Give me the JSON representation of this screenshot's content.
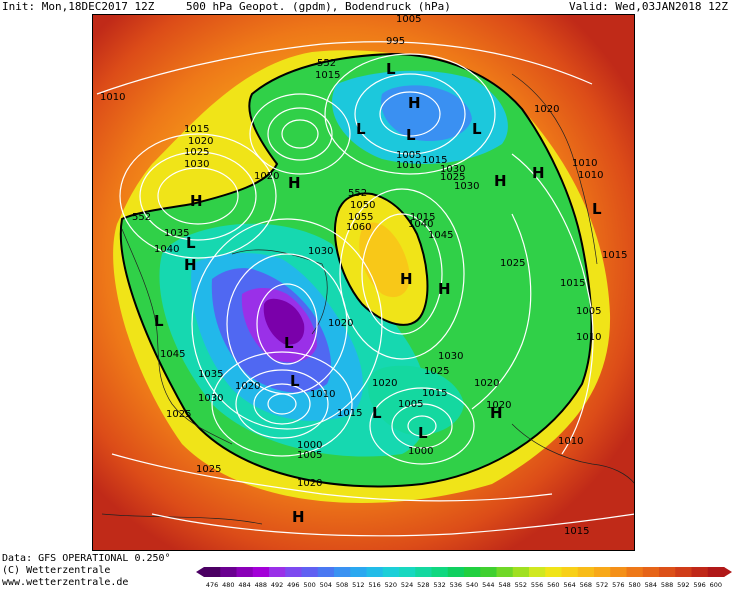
{
  "header": {
    "init": "Init: Mon,18DEC2017 12Z",
    "title": "500 hPa Geopot. (gpdm), Bodendruck (hPa)",
    "valid": "Valid: Wed,03JAN2018 12Z"
  },
  "footer": {
    "data": "Data: GFS OPERATIONAL 0.250°",
    "copyright": "(C) Wetterzentrale",
    "url": "www.wetterzentrale.de"
  },
  "colorscale": {
    "labels": [
      "476",
      "480",
      "484",
      "488",
      "492",
      "496",
      "500",
      "504",
      "508",
      "512",
      "516",
      "520",
      "524",
      "528",
      "532",
      "536",
      "540",
      "544",
      "548",
      "552",
      "556",
      "560",
      "564",
      "568",
      "572",
      "576",
      "580",
      "584",
      "588",
      "592",
      "596",
      "600"
    ],
    "colors": [
      "#4b0063",
      "#6a0090",
      "#8a00b8",
      "#a300d8",
      "#9a30e8",
      "#7d4af0",
      "#6060f2",
      "#4a78f2",
      "#3a92f2",
      "#2aa8f0",
      "#22bce8",
      "#1ccfd8",
      "#18d8c0",
      "#14d8a0",
      "#10d880",
      "#10d060",
      "#20d040",
      "#40d030",
      "#70d828",
      "#a0e020",
      "#d0e820",
      "#f0e418",
      "#f8d018",
      "#f8bc18",
      "#f8a818",
      "#f49018",
      "#ee7818",
      "#e66418",
      "#dc5018",
      "#d03c18",
      "#c02818",
      "#b01818"
    ]
  },
  "map": {
    "isobar_labels": [
      "1005",
      "995",
      "552",
      "1015",
      "1010",
      "1020",
      "1015",
      "1020",
      "1025",
      "1030",
      "1005",
      "1010",
      "1015",
      "1030",
      "1025",
      "1030",
      "1020",
      "1010",
      "552",
      "1050",
      "1035",
      "1015",
      "1040",
      "1060",
      "1055",
      "1045",
      "1040",
      "1030",
      "1025",
      "1020",
      "1015",
      "1045",
      "1035",
      "1030",
      "1020",
      "1025",
      "1030",
      "1020",
      "1010",
      "1000",
      "1005",
      "1015",
      "1010",
      "1005",
      "1015",
      "1020",
      "1010",
      "1000",
      "1025",
      "1020",
      "1015",
      "1005",
      "1025",
      "1020",
      "552",
      "1010",
      "1015"
    ],
    "pressure_centers": [
      "L",
      "H",
      "L",
      "L",
      "L",
      "H",
      "H",
      "H",
      "H",
      "H",
      "L",
      "H",
      "L",
      "L",
      "L",
      "H",
      "L",
      "H",
      "H",
      "L",
      "L"
    ]
  }
}
